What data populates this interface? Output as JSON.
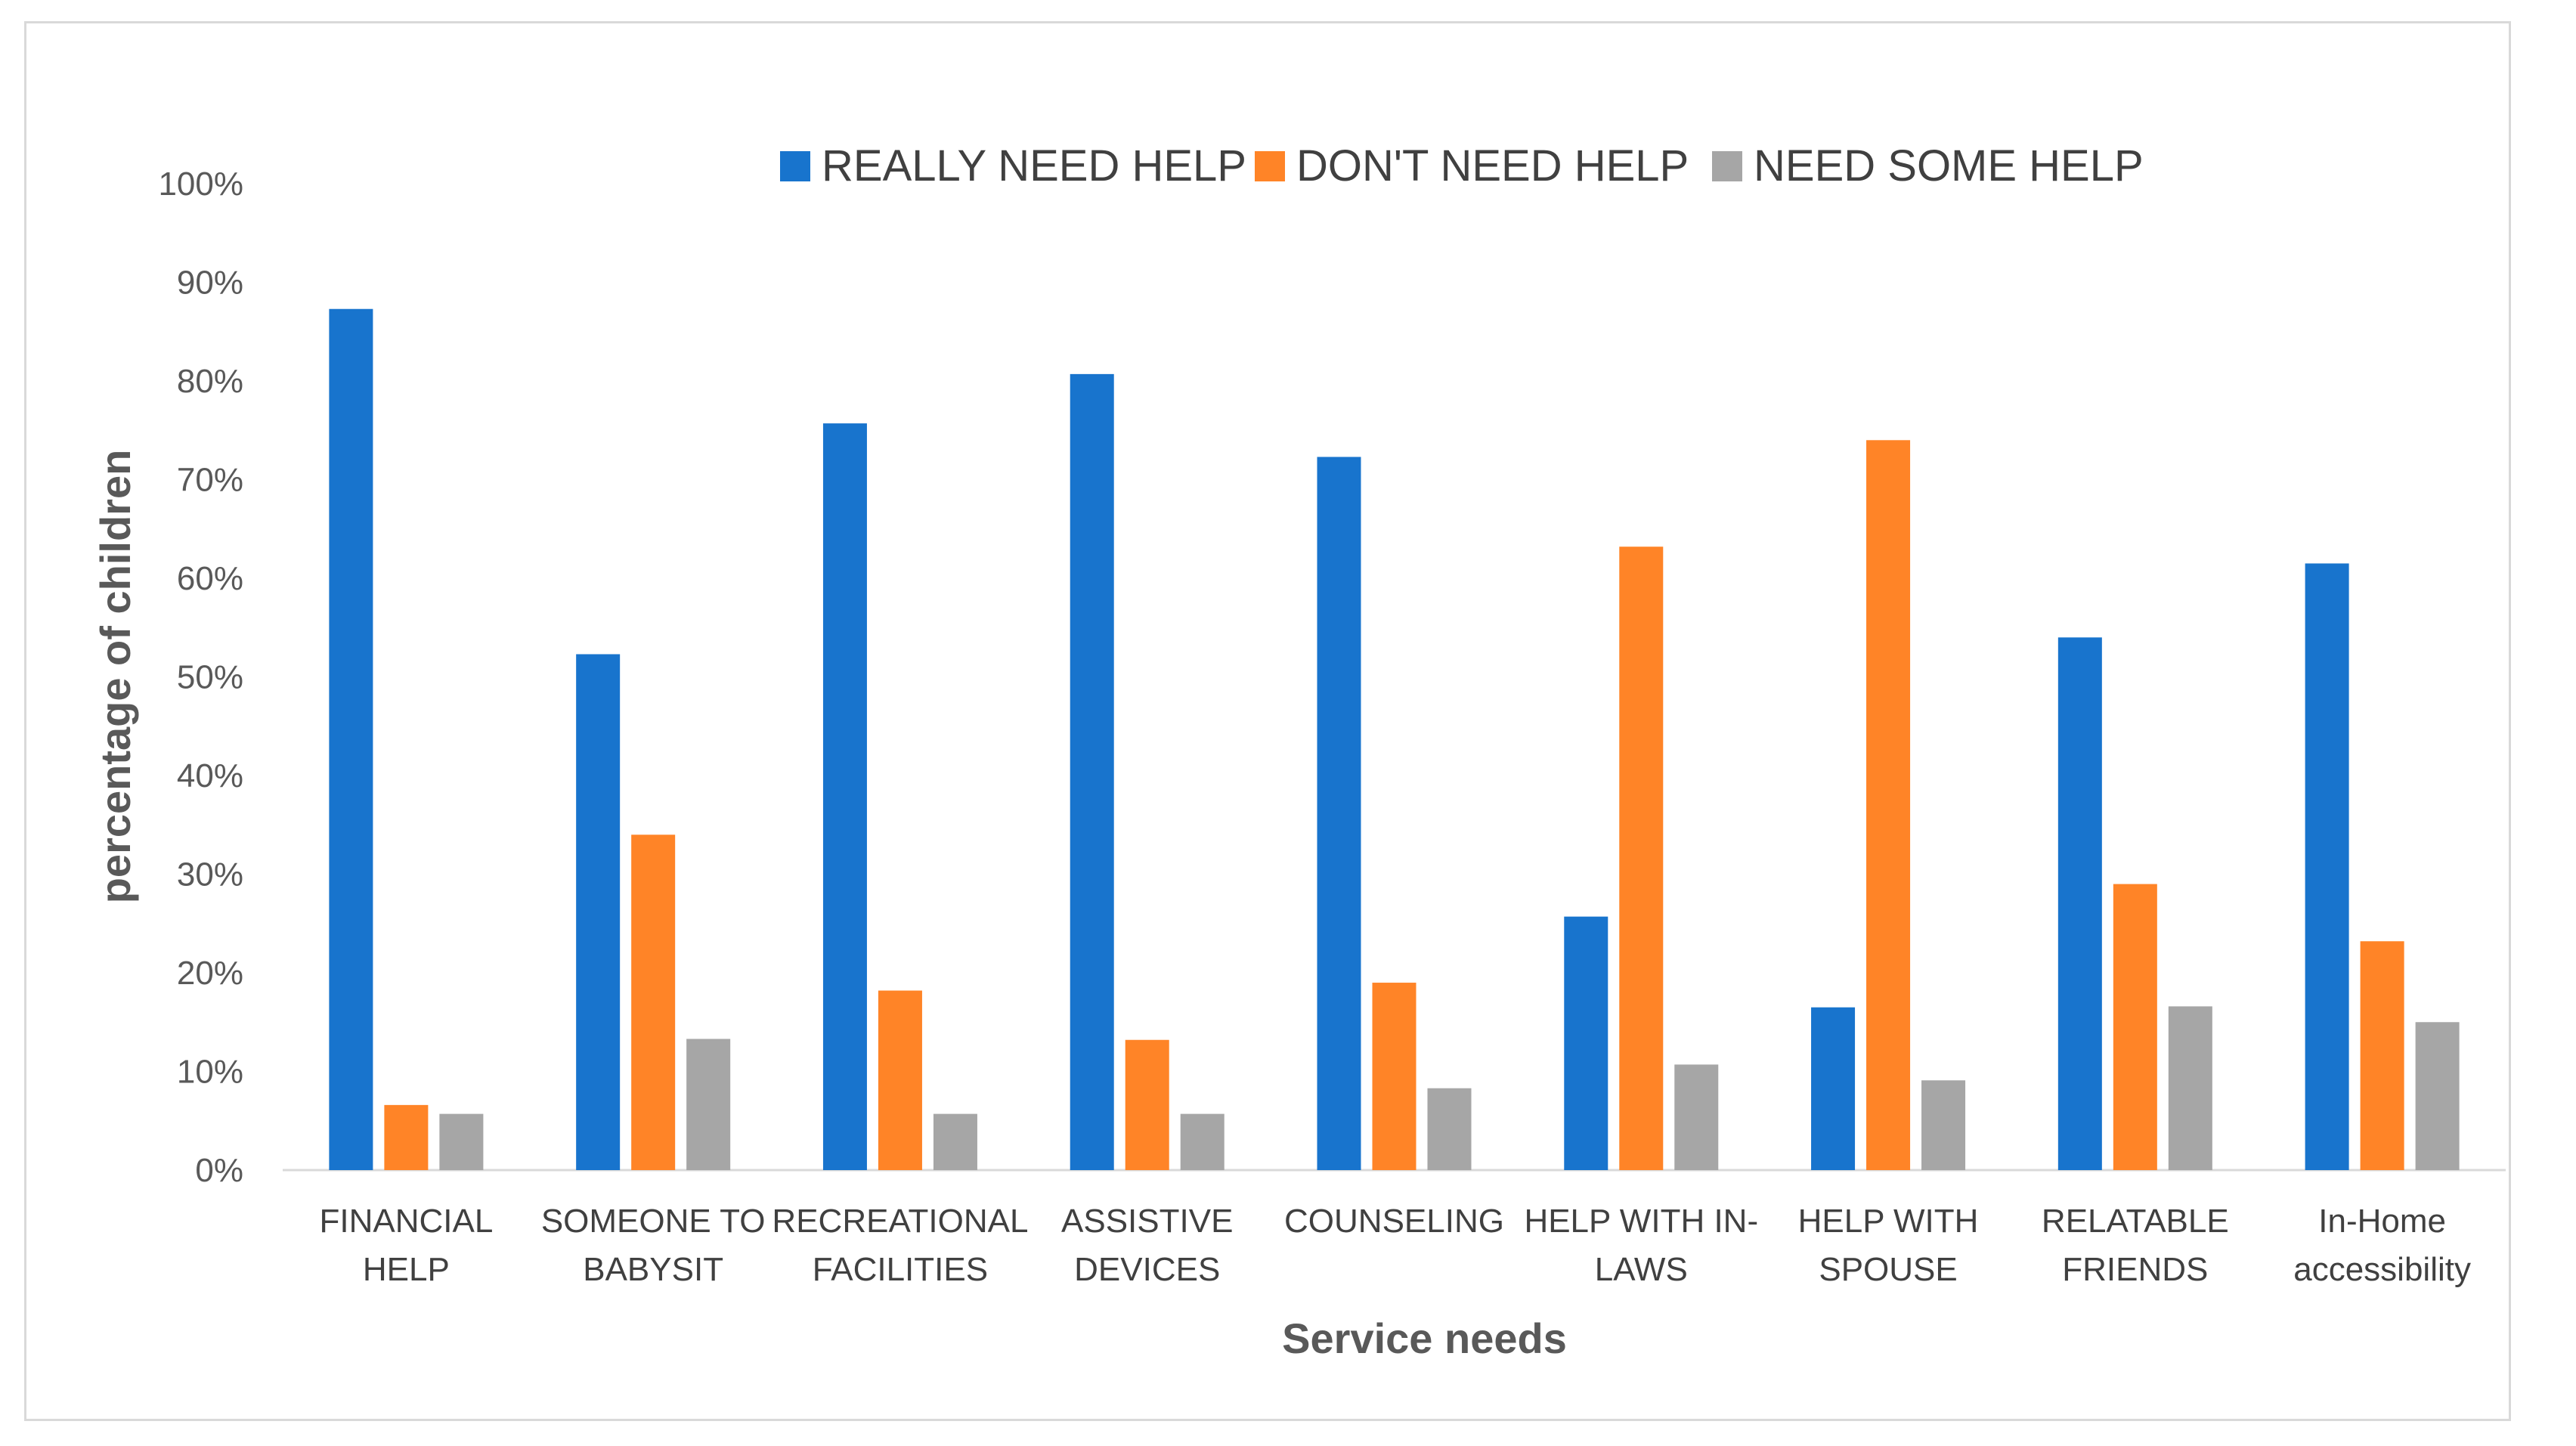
{
  "chart_data": {
    "type": "bar",
    "title": "",
    "xlabel": "Service needs",
    "ylabel": "percentage of children",
    "ylim": [
      0,
      100
    ],
    "yticks": [
      "0%",
      "10%",
      "20%",
      "30%",
      "40%",
      "50%",
      "60%",
      "70%",
      "80%",
      "90%",
      "100%"
    ],
    "grid": false,
    "legend_position": "top",
    "categories": [
      [
        "FINANCIAL",
        "HELP"
      ],
      [
        "SOMEONE TO",
        "BABYSIT"
      ],
      [
        "RECREATIONAL",
        "FACILITIES"
      ],
      [
        "ASSISTIVE",
        "DEVICES"
      ],
      [
        "COUNSELING"
      ],
      [
        "HELP WITH IN-",
        "LAWS"
      ],
      [
        "HELP WITH",
        "SPOUSE"
      ],
      [
        "RELATABLE",
        "FRIENDS"
      ],
      [
        "In-Home",
        "accessibility"
      ]
    ],
    "series": [
      {
        "name": "REALLY NEED HELP",
        "color": "#1874cd",
        "values": [
          87.3,
          52.3,
          75.7,
          80.7,
          72.3,
          25.7,
          16.5,
          54.0,
          61.5
        ]
      },
      {
        "name": "DON'T NEED HELP",
        "color": "#ff8427",
        "values": [
          6.6,
          34.0,
          18.2,
          13.2,
          19.0,
          63.2,
          74.0,
          29.0,
          23.2
        ]
      },
      {
        "name": "NEED SOME HELP",
        "color": "#a6a6a6",
        "values": [
          5.7,
          13.3,
          5.7,
          5.7,
          8.3,
          10.7,
          9.1,
          16.6,
          15.0
        ]
      }
    ]
  }
}
